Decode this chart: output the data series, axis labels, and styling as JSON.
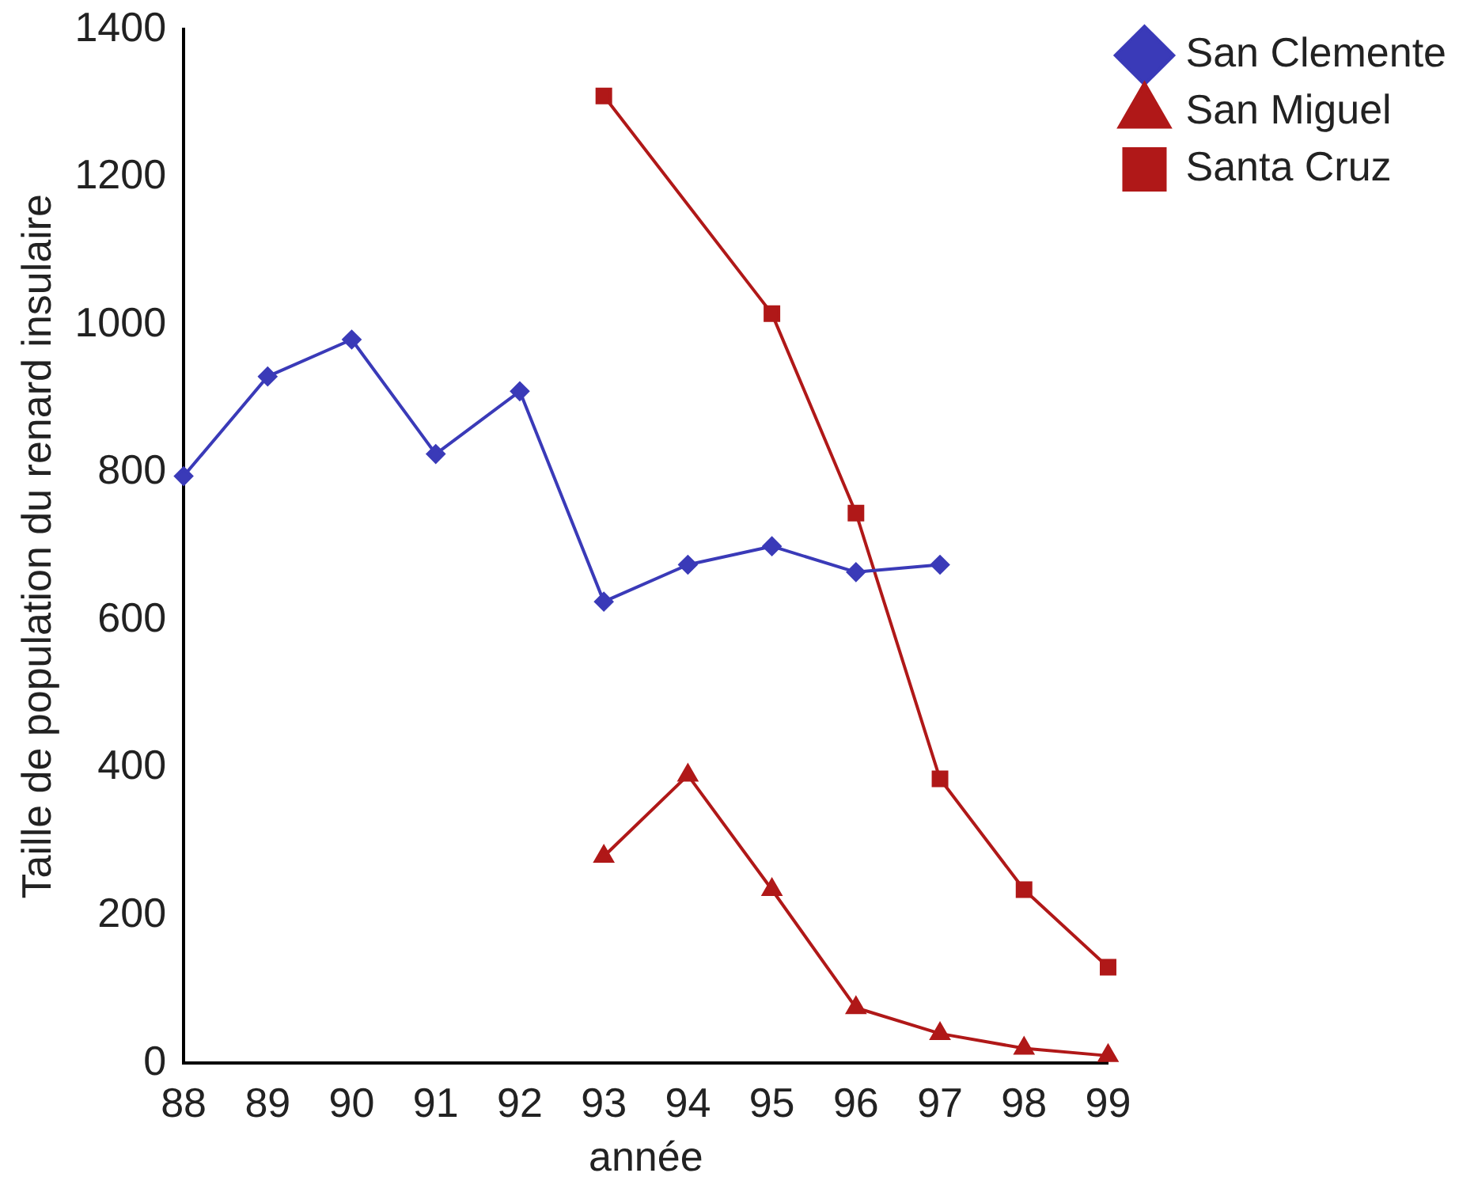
{
  "chart_data": {
    "type": "line",
    "xlabel": "année",
    "ylabel": "Taille de population du renard insulaire",
    "categories": [
      "88",
      "89",
      "90",
      "91",
      "92",
      "93",
      "94",
      "95",
      "96",
      "97",
      "98",
      "99"
    ],
    "ylim": [
      0,
      1400
    ],
    "yticks": [
      0,
      200,
      400,
      600,
      800,
      1000,
      1200,
      1400
    ],
    "grid": false,
    "legend": "top right",
    "line_style": "solid",
    "series": [
      {
        "name": "San Clemente",
        "color": "#3a3ab8",
        "marker": "diamond",
        "values": [
          795,
          930,
          980,
          825,
          910,
          625,
          675,
          700,
          665,
          675,
          null,
          null
        ]
      },
      {
        "name": "San Miguel",
        "color": "#b01818",
        "marker": "triangle",
        "values": [
          null,
          null,
          null,
          null,
          null,
          280,
          390,
          235,
          75,
          40,
          20,
          10
        ]
      },
      {
        "name": "Santa Cruz",
        "color": "#b01818",
        "marker": "square",
        "values": [
          null,
          null,
          null,
          null,
          null,
          1310,
          null,
          1015,
          745,
          385,
          235,
          130
        ]
      }
    ]
  }
}
